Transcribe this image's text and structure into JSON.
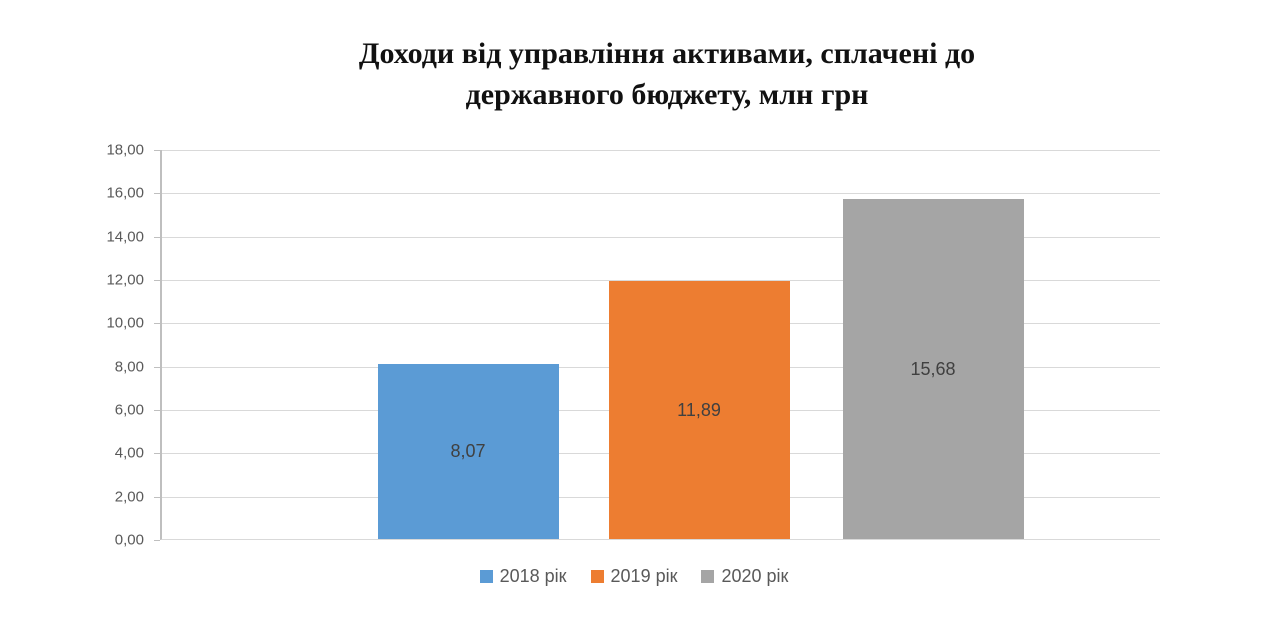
{
  "title": {
    "line1": "Доходи від управління активами, сплачені до",
    "line2": "державного бюджету, млн грн"
  },
  "chart_data": {
    "type": "bar",
    "title": "Доходи від управління активами, сплачені до державного бюджету, млн грн",
    "categories": [
      "2018 рік",
      "2019 рік",
      "2020 рік"
    ],
    "values": [
      8.07,
      11.89,
      15.68
    ],
    "value_labels": [
      "8,07",
      "11,89",
      "15,68"
    ],
    "colors": [
      "#5B9BD5",
      "#ED7D31",
      "#A5A5A5"
    ],
    "xlabel": "",
    "ylabel": "",
    "ylim": [
      0,
      18
    ],
    "ytick_step": 2,
    "yticks": [
      {
        "value": 0,
        "label": "0,00"
      },
      {
        "value": 2,
        "label": "2,00"
      },
      {
        "value": 4,
        "label": "4,00"
      },
      {
        "value": 6,
        "label": "6,00"
      },
      {
        "value": 8,
        "label": "8,00"
      },
      {
        "value": 10,
        "label": "10,00"
      },
      {
        "value": 12,
        "label": "12,00"
      },
      {
        "value": 14,
        "label": "14,00"
      },
      {
        "value": 16,
        "label": "16,00"
      },
      {
        "value": 18,
        "label": "18,00"
      }
    ],
    "grid": true,
    "legend_position": "bottom"
  }
}
